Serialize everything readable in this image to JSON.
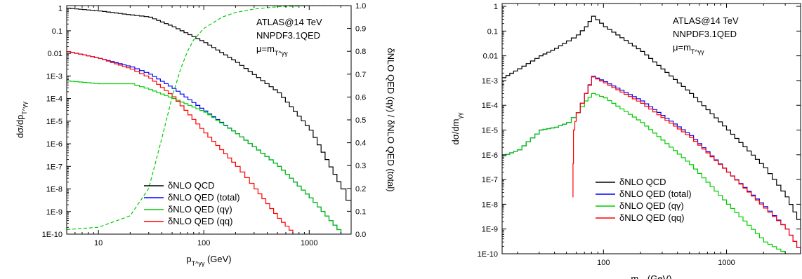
{
  "chart_data": [
    {
      "type": "line",
      "x_scale": "log",
      "y_scale": "log",
      "xlim": [
        5,
        2500
      ],
      "ylim": [
        1e-10,
        1.3
      ],
      "x_ticks": [
        10,
        100,
        1000
      ],
      "x_tick_labels": [
        "10",
        "100",
        "1000"
      ],
      "y_ticks": [
        1,
        0.1,
        0.01,
        0.001,
        0.0001,
        1e-05,
        1e-06,
        1e-07,
        1e-08,
        1e-09,
        1e-10
      ],
      "y_tick_labels": [
        "1",
        "0.1",
        "0.01",
        "1E-3",
        "1E-4",
        "1E-5",
        "1E-6",
        "1E-7",
        "1E-8",
        "1E-9",
        "1E-10"
      ],
      "xlabel": "p_T^γγ (GeV)",
      "ylabel": "dσ/dp_T^γγ",
      "y2label": "δNLO QED (qγ) / δNLO QED (total)",
      "y2lim": [
        0,
        1.0
      ],
      "y2_ticks": [
        0,
        0.1,
        0.2,
        0.3,
        0.4,
        0.5,
        0.6,
        0.7,
        0.8,
        0.9,
        1.0
      ],
      "y2_tick_labels": [
        "0.0",
        "0.1",
        "0.2",
        "0.3",
        "0.4",
        "0.5",
        "0.6",
        "0.7",
        "0.8",
        "0.9",
        "1.0"
      ],
      "annotations": [
        "ATLAS@14 TeV",
        "NNPDF3.1QED",
        "μ=m_T^γγ"
      ],
      "legend_position": "bottom-center",
      "series": [
        {
          "name": "δNLO QCD",
          "color": "#000000",
          "x": [
            5,
            10,
            20,
            30,
            50,
            100,
            200,
            500,
            1000,
            2000,
            2500
          ],
          "y": [
            1.0,
            0.75,
            0.5,
            0.4,
            0.15,
            0.03,
            0.004,
            0.00018,
            4e-06,
            1e-08,
            1e-09
          ]
        },
        {
          "name": "δNLO QED (total)",
          "color": "#0000ff",
          "x": [
            5,
            10,
            20,
            30,
            50,
            100,
            200,
            500,
            1000,
            2000
          ],
          "y": [
            0.012,
            0.006,
            0.0025,
            0.0012,
            0.00028,
            2.8e-05,
            2.8e-06,
            1e-07,
            4e-09,
            1e-10
          ]
        },
        {
          "name": "δNLO QED (qγ)",
          "color": "#00cc00",
          "x": [
            5,
            10,
            20,
            30,
            50,
            100,
            200,
            500,
            1000,
            2000
          ],
          "y": [
            0.0006,
            0.00045,
            0.00045,
            0.00025,
            0.0001,
            2.5e-05,
            2.8e-06,
            1e-07,
            4e-09,
            1e-10
          ]
        },
        {
          "name": "δNLO QED (qq)",
          "color": "#ff0000",
          "x": [
            5,
            10,
            20,
            30,
            50,
            100,
            200,
            300,
            500,
            700
          ],
          "y": [
            0.012,
            0.006,
            0.002,
            0.0008,
            0.00012,
            3e-06,
            1e-07,
            1e-08,
            5e-10,
            1e-10
          ]
        },
        {
          "name": "",
          "color": "#00cc00",
          "dashed": true,
          "axis": "right",
          "x": [
            5,
            10,
            20,
            30,
            40,
            50,
            60,
            70,
            80,
            100,
            150,
            200,
            300,
            500,
            1000,
            2500
          ],
          "y": [
            0.02,
            0.03,
            0.08,
            0.2,
            0.42,
            0.6,
            0.72,
            0.8,
            0.85,
            0.9,
            0.95,
            0.97,
            0.985,
            0.995,
            1.0,
            1.0
          ]
        }
      ]
    },
    {
      "type": "line",
      "x_scale": "log",
      "y_scale": "log",
      "xlim": [
        15,
        4000
      ],
      "ylim": [
        1e-10,
        1.3
      ],
      "x_ticks": [
        100,
        1000
      ],
      "x_tick_labels": [
        "100",
        "1000"
      ],
      "y_ticks": [
        1,
        0.1,
        0.01,
        0.001,
        0.0001,
        1e-05,
        1e-06,
        1e-07,
        1e-08,
        1e-09,
        1e-10
      ],
      "y_tick_labels": [
        "1",
        "0.1",
        "0.01",
        "1E-3",
        "1E-4",
        "1E-5",
        "1E-6",
        "1E-7",
        "1E-8",
        "1E-9",
        "1E-10"
      ],
      "xlabel": "m_γγ (GeV)",
      "ylabel": "dσ/dm_γγ",
      "annotations": [
        "ATLAS@14 TeV",
        "NNPDF3.1QED",
        "μ=m_T^γγ"
      ],
      "legend_position": "bottom-center",
      "series": [
        {
          "name": "δNLO QCD",
          "color": "#000000",
          "x": [
            15,
            20,
            30,
            40,
            50,
            60,
            70,
            80,
            100,
            200,
            500,
            1000,
            2000,
            3000,
            4000
          ],
          "y": [
            0.0013,
            0.003,
            0.01,
            0.02,
            0.04,
            0.07,
            0.15,
            0.4,
            0.15,
            0.015,
            0.0003,
            1e-05,
            3e-07,
            2e-08,
            1.2e-09
          ]
        },
        {
          "name": "δNLO QED (total)",
          "color": "#0000ff",
          "x": [
            15,
            20,
            30,
            40,
            50,
            60,
            70,
            80,
            100,
            200,
            500,
            1000,
            2000,
            3000,
            4000
          ],
          "y": [
            9e-07,
            1.6e-06,
            1e-05,
            1.3e-05,
            2e-05,
            5e-05,
            0.0003,
            0.0015,
            0.0009,
            0.00015,
            6e-06,
            2e-07,
            8e-09,
            1e-09,
            1e-10
          ]
        },
        {
          "name": "δNLO QED (qγ)",
          "color": "#00cc00",
          "x": [
            15,
            20,
            30,
            40,
            50,
            60,
            70,
            80,
            100,
            200,
            500,
            1000,
            2000,
            3000
          ],
          "y": [
            9e-07,
            1.6e-06,
            1e-05,
            1.3e-05,
            2e-05,
            5e-05,
            0.00015,
            0.0003,
            0.0002,
            2e-05,
            4e-07,
            1e-08,
            3e-10,
            1e-10
          ]
        },
        {
          "name": "δNLO QED (qq)",
          "color": "#ff0000",
          "x": [
            56,
            57,
            60,
            70,
            80,
            100,
            200,
            500,
            1000,
            2000,
            3000,
            4000
          ],
          "y": [
            2e-08,
            1e-05,
            5e-05,
            0.0003,
            0.0014,
            0.0008,
            0.00012,
            5e-06,
            2e-07,
            7e-09,
            1e-09,
            1e-10
          ]
        }
      ]
    }
  ]
}
